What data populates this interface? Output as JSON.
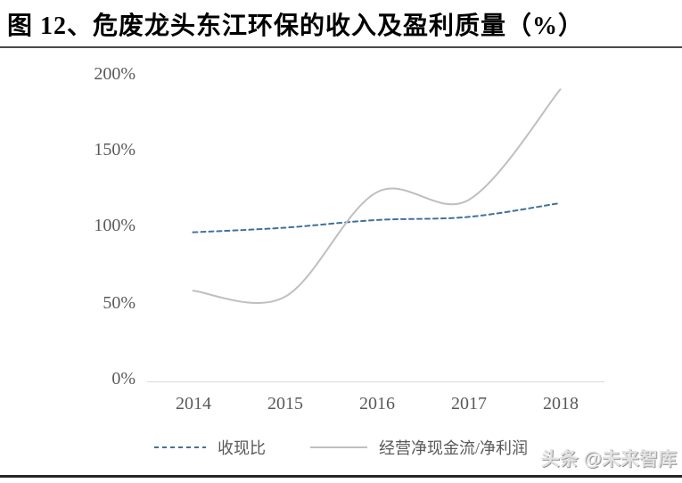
{
  "figure": {
    "title": "图 12、危废龙头东江环保的收入及盈利质量（%）",
    "watermark": "头条 @未来智库"
  },
  "chart_data": {
    "type": "line",
    "categories": [
      "2014",
      "2015",
      "2016",
      "2017",
      "2018"
    ],
    "series": [
      {
        "name": "收现比",
        "values": [
          97,
          100,
          105,
          107,
          116
        ],
        "color": "#41719c",
        "style": "dashed"
      },
      {
        "name": "经营净现金流/净利润",
        "values": [
          59,
          55,
          123,
          118,
          190
        ],
        "color": "#bfbfbf",
        "style": "solid"
      }
    ],
    "title": "",
    "xlabel": "",
    "ylabel": "",
    "ylim": [
      0,
      200
    ],
    "yticks": [
      "0%",
      "50%",
      "100%",
      "150%",
      "200%"
    ],
    "grid": false,
    "legend_position": "bottom",
    "smooth": true
  },
  "colors": {
    "accent_blue": "#41719c",
    "series_gray": "#bfbfbf",
    "axis_text": "#595959",
    "axis_line": "#d9d9d9",
    "rule_dark": "#262626"
  }
}
